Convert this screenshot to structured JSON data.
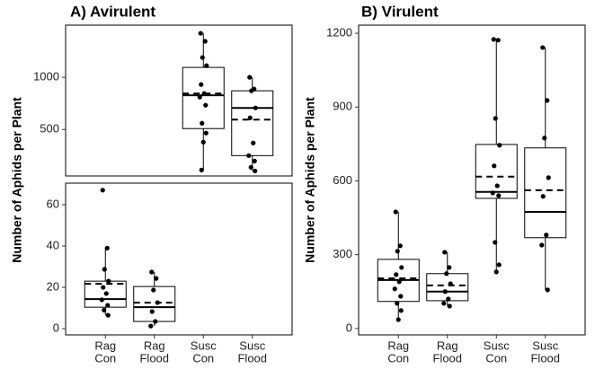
{
  "chart_data": [
    {
      "type": "box",
      "title": "A) Avirulent",
      "ylabel": "Number of Aphids per Plant",
      "categories": [
        [
          "Rag",
          "Con"
        ],
        [
          "Rag",
          "Flood"
        ],
        [
          "Susc",
          "Con"
        ],
        [
          "Susc",
          "Flood"
        ]
      ],
      "panels": [
        {
          "ylim": [
            55,
            1500
          ],
          "yticks": [
            500,
            1000
          ],
          "boxes": [
            null,
            null,
            {
              "min": 112,
              "q1": 509,
              "median": 828,
              "q3": 1095,
              "max": 1422,
              "mean": 845,
              "points": [
                1422,
                1345,
                1190,
                1112,
                931,
                845,
                810,
                733,
                560,
                466,
                379,
                112
              ]
            },
            {
              "min": 103,
              "q1": 250,
              "median": 707,
              "q3": 871,
              "max": 1000,
              "mean": 595,
              "points": [
                1000,
                888,
                871,
                707,
                612,
                371,
                250,
                198,
                138,
                103
              ]
            }
          ]
        },
        {
          "ylim": [
            -3,
            70.4
          ],
          "yticks": [
            0,
            20,
            40,
            60
          ],
          "boxes": [
            {
              "min": 6.5,
              "q1": 10.4,
              "median": 14.3,
              "q3": 23,
              "max": 39,
              "mean": 21.7,
              "points": [
                67,
                39,
                28.7,
                23,
                20,
                17,
                14,
                11.3,
                9,
                6.5
              ]
            },
            {
              "min": 1.3,
              "q1": 3.5,
              "median": 10.4,
              "q3": 20.4,
              "max": 27.4,
              "mean": 12.6,
              "points": [
                27.4,
                24.3,
                18.7,
                12.6,
                8.3,
                3.5,
                1.3
              ]
            },
            null,
            null
          ]
        }
      ]
    },
    {
      "type": "box",
      "title": "B) Virulent",
      "ylabel": "Number of Aphids per Plant",
      "categories": [
        [
          "Rag",
          "Con"
        ],
        [
          "Rag",
          "Flood"
        ],
        [
          "Susc",
          "Con"
        ],
        [
          "Susc",
          "Flood"
        ]
      ],
      "panels": [
        {
          "ylim": [
            -26,
            1233
          ],
          "yticks": [
            0,
            300,
            600,
            900,
            1200
          ],
          "boxes": [
            {
              "min": 36,
              "q1": 110,
              "median": 197,
              "q3": 281,
              "max": 474,
              "mean": 204,
              "points": [
                474,
                336,
                314,
                248,
                219,
                190,
                161,
                131,
                102,
                73,
                36
              ]
            },
            {
              "min": 91,
              "q1": 113,
              "median": 150,
              "q3": 223,
              "max": 310,
              "mean": 175,
              "points": [
                310,
                248,
                223,
                182,
                150,
                120,
                102,
                91
              ]
            },
            {
              "min": 230,
              "q1": 529,
              "median": 555,
              "q3": 748,
              "max": 1175,
              "mean": 617,
              "points": [
                1175,
                1172,
                854,
                745,
                661,
                580,
                551,
                540,
                350,
                259,
                230
              ]
            },
            {
              "min": 157,
              "q1": 369,
              "median": 474,
              "q3": 734,
              "max": 1142,
              "mean": 562,
              "points": [
                1142,
                927,
                774,
                613,
                537,
                380,
                339,
                157
              ]
            }
          ]
        }
      ]
    }
  ]
}
